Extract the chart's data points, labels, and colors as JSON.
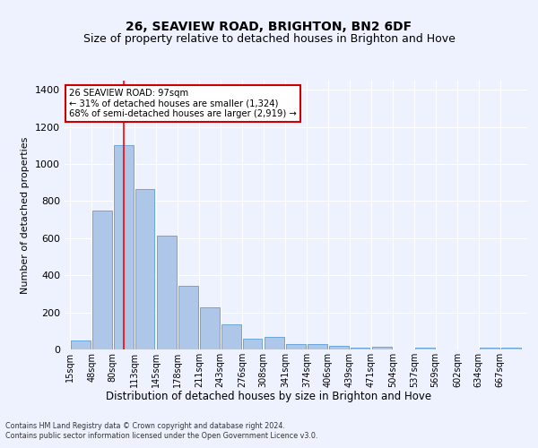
{
  "title": "26, SEAVIEW ROAD, BRIGHTON, BN2 6DF",
  "subtitle": "Size of property relative to detached houses in Brighton and Hove",
  "xlabel": "Distribution of detached houses by size in Brighton and Hove",
  "ylabel": "Number of detached properties",
  "bin_labels": [
    "15sqm",
    "48sqm",
    "80sqm",
    "113sqm",
    "145sqm",
    "178sqm",
    "211sqm",
    "243sqm",
    "276sqm",
    "308sqm",
    "341sqm",
    "374sqm",
    "406sqm",
    "439sqm",
    "471sqm",
    "504sqm",
    "537sqm",
    "569sqm",
    "602sqm",
    "634sqm",
    "667sqm"
  ],
  "bar_values": [
    50,
    750,
    1100,
    865,
    615,
    345,
    225,
    135,
    60,
    70,
    30,
    30,
    20,
    10,
    15,
    0,
    12,
    0,
    0,
    10,
    10
  ],
  "bar_color": "#aec6e8",
  "bar_edge_color": "#5a9fd4",
  "background_color": "#eef2ff",
  "grid_color": "#ffffff",
  "red_line_x": 97,
  "bin_edges": [
    15,
    48,
    80,
    113,
    145,
    178,
    211,
    243,
    276,
    308,
    341,
    374,
    406,
    439,
    471,
    504,
    537,
    569,
    602,
    634,
    667,
    700
  ],
  "annotation_text": "26 SEAVIEW ROAD: 97sqm\n← 31% of detached houses are smaller (1,324)\n68% of semi-detached houses are larger (2,919) →",
  "annotation_box_color": "#ffffff",
  "annotation_box_edge": "#cc0000",
  "footnote1": "Contains HM Land Registry data © Crown copyright and database right 2024.",
  "footnote2": "Contains public sector information licensed under the Open Government Licence v3.0.",
  "ylim": [
    0,
    1450
  ],
  "title_fontsize": 10,
  "subtitle_fontsize": 9
}
